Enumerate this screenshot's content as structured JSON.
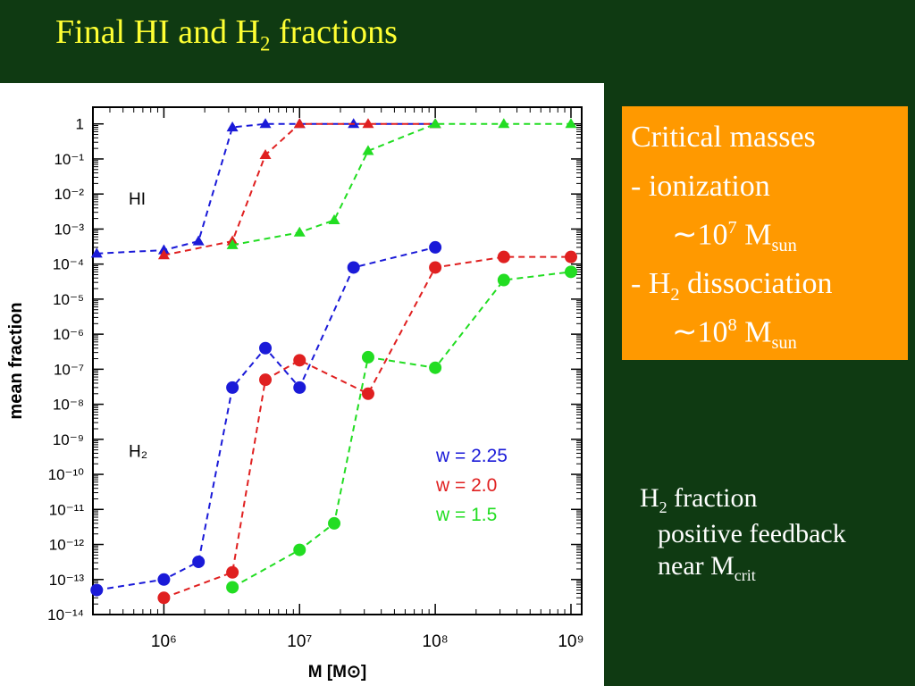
{
  "slide": {
    "title_main": "Final HI and H",
    "title_sub": "2",
    "title_end": " fractions"
  },
  "critical_box": {
    "line1": "Critical masses",
    "line2": "- ionization",
    "line3_pre": "∼10",
    "line3_sup": "7",
    "line3_unit": " M",
    "line3_sub": "sun",
    "line4_pre": "- H",
    "line4_sub": "2",
    "line4_post": " dissociation",
    "line5_pre": "∼10",
    "line5_sup": "8",
    "line5_unit": " M",
    "line5_sub": "sun"
  },
  "note": {
    "line1_pre": "H",
    "line1_sub": "2",
    "line1_post": " fraction",
    "line2": "positive feedback",
    "line3_pre": "near M",
    "line3_sub": "crit"
  },
  "chart_data": {
    "type": "scatter",
    "xlabel": "M  [M⊙]",
    "ylabel": "mean fraction",
    "xscale": "log",
    "yscale": "log",
    "xlim": [
      300000.0,
      1200000000.0
    ],
    "ylim": [
      1e-14,
      3
    ],
    "xticks": [
      "10⁶",
      "10⁷",
      "10⁸",
      "10⁹"
    ],
    "yticks": [
      "1",
      "10⁻¹",
      "10⁻²",
      "10⁻³",
      "10⁻⁴",
      "10⁻⁵",
      "10⁻⁶",
      "10⁻⁷",
      "10⁻⁸",
      "10⁻⁹",
      "10⁻¹⁰",
      "10⁻¹¹",
      "10⁻¹²",
      "10⁻¹³",
      "10⁻¹⁴"
    ],
    "annotations": [
      "HI",
      "H₂"
    ],
    "legend": [
      "w  =  2.25",
      "w  =  2.0",
      "w  =  1.5"
    ],
    "legend_position": "lower-right",
    "series": [
      {
        "name": "w = 2.25",
        "species": "HI",
        "marker": "triangle",
        "color": "#1a1ad8",
        "x": [
          320000.0,
          1000000.0,
          1800000.0,
          3200000.0,
          5600000.0,
          10000000.0,
          25000000.0,
          100000000.0
        ],
        "y": [
          0.0002,
          0.00025,
          0.00045,
          0.8,
          1.0,
          1.0,
          1.0,
          1.0
        ]
      },
      {
        "name": "w = 2.0",
        "species": "HI",
        "marker": "triangle",
        "color": "#e02020",
        "x": [
          1000000.0,
          3200000.0,
          5600000.0,
          10000000.0,
          32000000.0,
          100000000.0
        ],
        "y": [
          0.00018,
          0.00045,
          0.13,
          1.0,
          1.0,
          1.0
        ]
      },
      {
        "name": "w = 1.5",
        "species": "HI",
        "marker": "triangle",
        "color": "#22dd22",
        "x": [
          3200000.0,
          10000000.0,
          18000000.0,
          32000000.0,
          100000000.0,
          320000000.0,
          1000000000.0
        ],
        "y": [
          0.00035,
          0.0008,
          0.0018,
          0.17,
          1.0,
          1.0,
          1.0
        ]
      },
      {
        "name": "w = 2.25",
        "species": "H2",
        "marker": "circle",
        "color": "#1a1ad8",
        "x": [
          320000.0,
          1000000.0,
          1800000.0,
          3200000.0,
          5600000.0,
          10000000.0,
          25000000.0,
          100000000.0
        ],
        "y": [
          5e-14,
          1e-13,
          3.2e-13,
          3e-08,
          4e-07,
          3e-08,
          8e-05,
          0.0003
        ]
      },
      {
        "name": "w = 2.0",
        "species": "H2",
        "marker": "circle",
        "color": "#e02020",
        "x": [
          1000000.0,
          3200000.0,
          5600000.0,
          10000000.0,
          32000000.0,
          100000000.0,
          320000000.0,
          1000000000.0
        ],
        "y": [
          3e-14,
          1.6e-13,
          5e-08,
          1.8e-07,
          2e-08,
          8e-05,
          0.00016,
          0.00016
        ]
      },
      {
        "name": "w = 1.5",
        "species": "H2",
        "marker": "circle",
        "color": "#22dd22",
        "x": [
          3200000.0,
          10000000.0,
          18000000.0,
          32000000.0,
          100000000.0,
          320000000.0,
          1000000000.0
        ],
        "y": [
          6e-14,
          7e-13,
          4e-12,
          2.2e-07,
          1.1e-07,
          3.5e-05,
          6e-05
        ]
      }
    ]
  }
}
